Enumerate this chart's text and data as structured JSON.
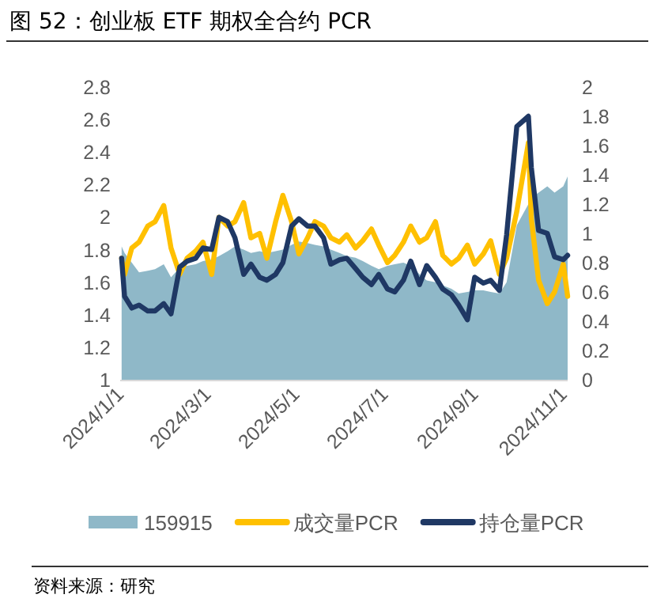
{
  "chart_data": {
    "type": "line",
    "title": "图 52：创业板 ETF 期权全合约 PCR",
    "annotations": [
      "资料来源：研究"
    ],
    "x": [
      "2024-01-02",
      "2024-01-04",
      "2024-01-09",
      "2024-01-14",
      "2024-01-20",
      "2024-01-25",
      "2024-01-31",
      "2024-02-05",
      "2024-02-11",
      "2024-02-16",
      "2024-02-22",
      "2024-02-27",
      "2024-03-04",
      "2024-03-09",
      "2024-03-15",
      "2024-03-20",
      "2024-03-26",
      "2024-03-31",
      "2024-04-06",
      "2024-04-11",
      "2024-04-17",
      "2024-04-22",
      "2024-04-28",
      "2024-05-03",
      "2024-05-09",
      "2024-05-14",
      "2024-05-20",
      "2024-05-25",
      "2024-05-31",
      "2024-06-05",
      "2024-06-11",
      "2024-06-16",
      "2024-06-22",
      "2024-06-27",
      "2024-07-03",
      "2024-07-08",
      "2024-07-14",
      "2024-07-19",
      "2024-07-25",
      "2024-07-30",
      "2024-08-05",
      "2024-08-10",
      "2024-08-16",
      "2024-08-21",
      "2024-08-27",
      "2024-09-01",
      "2024-09-07",
      "2024-09-12",
      "2024-09-18",
      "2024-09-23",
      "2024-09-30",
      "2024-10-08",
      "2024-10-10",
      "2024-10-15",
      "2024-10-21",
      "2024-10-26",
      "2024-11-01",
      "2024-11-04"
    ],
    "series": [
      {
        "name": "159915",
        "type": "area",
        "color": "#8fb8c8",
        "values": [
          1.82,
          1.78,
          1.72,
          1.66,
          1.67,
          1.68,
          1.71,
          1.63,
          1.69,
          1.7,
          1.71,
          1.73,
          1.74,
          1.76,
          1.79,
          1.82,
          1.8,
          1.78,
          1.79,
          1.78,
          1.79,
          1.8,
          1.83,
          1.85,
          1.84,
          1.83,
          1.82,
          1.8,
          1.78,
          1.76,
          1.75,
          1.73,
          1.7,
          1.68,
          1.7,
          1.71,
          1.72,
          1.7,
          1.65,
          1.61,
          1.6,
          1.58,
          1.56,
          1.53,
          1.54,
          1.55,
          1.55,
          1.54,
          1.53,
          1.6,
          1.95,
          2.08,
          2.12,
          2.15,
          2.19,
          2.15,
          2.19,
          2.25
        ]
      },
      {
        "name": "成交量PCR",
        "axis": "y2",
        "color": "#ffc000",
        "values": [
          0.83,
          0.72,
          0.9,
          0.94,
          1.05,
          1.08,
          1.19,
          0.9,
          0.72,
          0.83,
          0.88,
          0.94,
          0.72,
          1.11,
          1.05,
          1.08,
          1.21,
          0.97,
          1.0,
          0.83,
          1.08,
          1.26,
          1.08,
          0.86,
          0.97,
          1.08,
          1.05,
          0.97,
          0.94,
          0.99,
          0.9,
          0.95,
          1.03,
          0.92,
          0.8,
          0.85,
          0.94,
          1.05,
          0.94,
          0.97,
          1.08,
          0.85,
          0.79,
          0.83,
          0.92,
          0.79,
          0.86,
          0.95,
          0.72,
          0.83,
          1.15,
          1.62,
          1.1,
          0.68,
          0.52,
          0.6,
          0.79,
          0.57
        ]
      },
      {
        "name": "持仓量PCR",
        "axis": "y2",
        "color": "#1f3864",
        "values": [
          0.83,
          0.57,
          0.49,
          0.51,
          0.47,
          0.47,
          0.52,
          0.45,
          0.77,
          0.81,
          0.83,
          0.9,
          0.89,
          1.11,
          1.08,
          0.97,
          0.72,
          0.79,
          0.7,
          0.68,
          0.72,
          0.8,
          1.05,
          1.1,
          1.05,
          1.05,
          0.97,
          0.79,
          0.82,
          0.83,
          0.76,
          0.7,
          0.65,
          0.72,
          0.62,
          0.6,
          0.68,
          0.81,
          0.65,
          0.78,
          0.7,
          0.62,
          0.58,
          0.51,
          0.41,
          0.7,
          0.66,
          0.68,
          0.61,
          0.99,
          1.73,
          1.8,
          1.45,
          1.02,
          1.0,
          0.84,
          0.82,
          0.85
        ]
      }
    ],
    "xlim": [
      "2024-01-01",
      "2024-11-04"
    ],
    "xticks": [
      {
        "value": "2024-01-01",
        "label": "2024/1/1"
      },
      {
        "value": "2024-03-01",
        "label": "2024/3/1"
      },
      {
        "value": "2024-05-01",
        "label": "2024/5/1"
      },
      {
        "value": "2024-07-01",
        "label": "2024/7/1"
      },
      {
        "value": "2024-09-01",
        "label": "2024/9/1"
      },
      {
        "value": "2024-11-01",
        "label": "2024/11/1"
      }
    ],
    "ylim": [
      1,
      2.8
    ],
    "yticks": [
      {
        "value": 1,
        "label": "1"
      },
      1.2,
      1.4,
      1.6,
      1.8,
      {
        "value": 2,
        "label": "2"
      },
      2.2,
      2.4,
      2.6,
      2.8
    ],
    "y2lim": [
      0,
      2
    ],
    "y2ticks": [
      {
        "value": 0,
        "label": "0"
      },
      0.2,
      0.4,
      0.6,
      0.8,
      {
        "value": 1,
        "label": "1"
      },
      1.2,
      1.4,
      1.6,
      1.8,
      {
        "value": 2,
        "label": "2"
      }
    ],
    "legend": "bottom",
    "grid": false
  }
}
